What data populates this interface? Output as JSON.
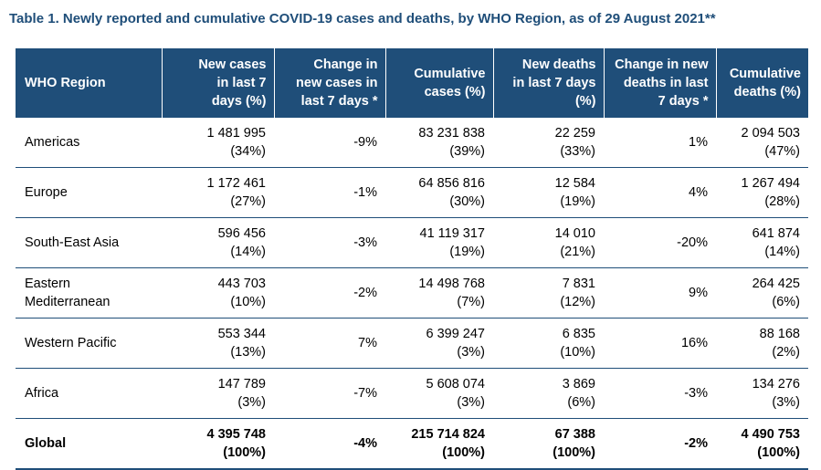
{
  "title": "Table 1. Newly reported and cumulative COVID-19 cases and deaths, by WHO Region, as of 29 August 2021**",
  "headers": [
    [
      "WHO Region"
    ],
    [
      "New cases",
      "in last 7",
      "days (%)"
    ],
    [
      "Change in",
      "new cases in",
      "last 7 days *"
    ],
    [
      "Cumulative",
      "cases (%)"
    ],
    [
      "New deaths",
      "in last 7 days",
      "(%)"
    ],
    [
      "Change in new",
      "deaths in last",
      "7 days *"
    ],
    [
      "Cumulative",
      "deaths (%)"
    ]
  ],
  "rows": [
    {
      "region": [
        "Americas"
      ],
      "new_cases": [
        "1 481 995",
        "(34%)"
      ],
      "change_cases": "-9%",
      "cum_cases": [
        "83 231 838",
        "(39%)"
      ],
      "new_deaths": [
        "22 259",
        "(33%)"
      ],
      "change_deaths": "1%",
      "cum_deaths": [
        "2 094 503",
        "(47%)"
      ]
    },
    {
      "region": [
        "Europe"
      ],
      "new_cases": [
        "1 172 461",
        "(27%)"
      ],
      "change_cases": "-1%",
      "cum_cases": [
        "64 856 816",
        "(30%)"
      ],
      "new_deaths": [
        "12 584",
        "(19%)"
      ],
      "change_deaths": "4%",
      "cum_deaths": [
        "1 267 494",
        "(28%)"
      ]
    },
    {
      "region": [
        "South-East Asia"
      ],
      "new_cases": [
        "596 456",
        "(14%)"
      ],
      "change_cases": "-3%",
      "cum_cases": [
        "41 119 317",
        "(19%)"
      ],
      "new_deaths": [
        "14 010",
        "(21%)"
      ],
      "change_deaths": "-20%",
      "cum_deaths": [
        "641 874",
        "(14%)"
      ]
    },
    {
      "region": [
        "Eastern",
        "Mediterranean"
      ],
      "new_cases": [
        "443 703",
        "(10%)"
      ],
      "change_cases": "-2%",
      "cum_cases": [
        "14 498 768",
        "(7%)"
      ],
      "new_deaths": [
        "7 831",
        "(12%)"
      ],
      "change_deaths": "9%",
      "cum_deaths": [
        "264 425",
        "(6%)"
      ]
    },
    {
      "region": [
        "Western Pacific"
      ],
      "new_cases": [
        "553 344",
        "(13%)"
      ],
      "change_cases": "7%",
      "cum_cases": [
        "6 399 247",
        "(3%)"
      ],
      "new_deaths": [
        "6 835",
        "(10%)"
      ],
      "change_deaths": "16%",
      "cum_deaths": [
        "88 168",
        "(2%)"
      ]
    },
    {
      "region": [
        "Africa"
      ],
      "new_cases": [
        "147 789",
        "(3%)"
      ],
      "change_cases": "-7%",
      "cum_cases": [
        "5 608 074",
        "(3%)"
      ],
      "new_deaths": [
        "3 869",
        "(6%)"
      ],
      "change_deaths": "-3%",
      "cum_deaths": [
        "134 276",
        "(3%)"
      ]
    },
    {
      "region": [
        "Global"
      ],
      "new_cases": [
        "4 395 748",
        "(100%)"
      ],
      "change_cases": "-4%",
      "cum_cases": [
        "215 714 824",
        "(100%)"
      ],
      "new_deaths": [
        "67 388",
        "(100%)"
      ],
      "change_deaths": "-2%",
      "cum_deaths": [
        "4 490 753",
        "(100%)"
      ]
    }
  ],
  "colors": {
    "header_bg": "#1f4e79",
    "header_text": "#ffffff",
    "title": "#1f4e79"
  }
}
